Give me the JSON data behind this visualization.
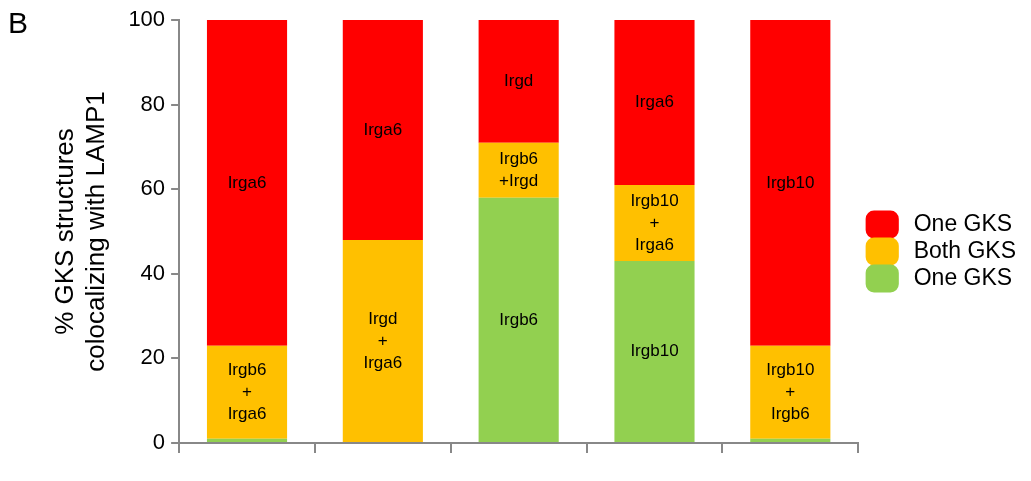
{
  "chart_data": {
    "type": "bar",
    "stacked": true,
    "ylabel": "% GKS structures\ncolocalizing with LAMP1",
    "annotations": [
      "B"
    ],
    "categories": [
      null,
      null,
      null,
      null,
      null
    ],
    "series": [
      {
        "name": "One GKS",
        "color": "#92d050",
        "values": [
          1,
          0,
          58,
          43,
          1
        ],
        "value_labels": [
          null,
          null,
          "Irgb6",
          "Irgb10",
          null
        ]
      },
      {
        "name": "Both GKS",
        "color": "#ffc000",
        "values": [
          22,
          48,
          13,
          18,
          22
        ],
        "value_labels": [
          "Irgb6\n+\nIrga6",
          "Irgd\n+\nIrga6",
          "Irgb6\n+Irgd",
          "Irgb10\n+\nIrga6",
          "Irgb10\n+\nIrgb6"
        ]
      },
      {
        "name": "One GKS",
        "color": "#ff0000",
        "values": [
          77,
          52,
          29,
          39,
          77
        ],
        "value_labels": [
          "Irga6",
          "Irga6",
          "Irgd",
          "Irga6",
          "Irgb10"
        ]
      }
    ],
    "ylim": [
      0,
      100
    ],
    "yticks": [
      0,
      20,
      40,
      60,
      80,
      100
    ],
    "grid": false,
    "legend": "right"
  }
}
